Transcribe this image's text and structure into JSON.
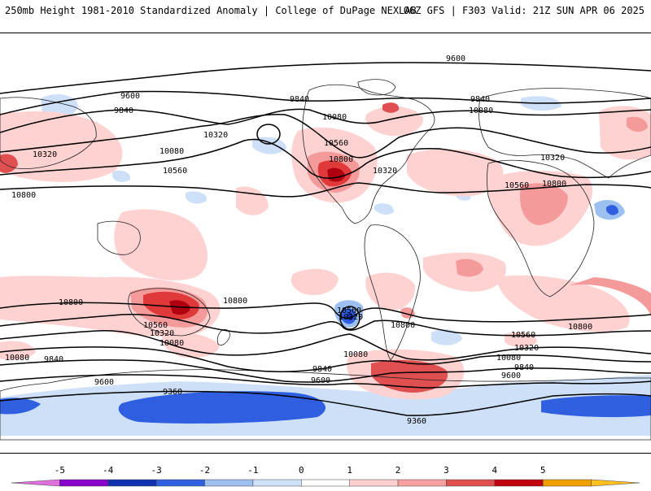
{
  "header": {
    "left_title": "250mb Height 1981-2010 Standardized Anomaly | College of DuPage NEXLAB",
    "right_title": "06Z GFS | F303 Valid: 21Z SUN APR 06 2025"
  },
  "contour_labels": {
    "c9600": "9600",
    "c9840": "9840",
    "c10080": "10080",
    "c10320": "10320",
    "c10560": "10560",
    "c10800": "10800",
    "c9360": "9360"
  },
  "colorbar": {
    "ticks": [
      "-5",
      "-4",
      "-3",
      "-2",
      "-1",
      "0",
      "1",
      "2",
      "3",
      "4",
      "5"
    ],
    "colors": [
      "#e070e0",
      "#8800cc",
      "#1030b0",
      "#3060e0",
      "#9cc0f0",
      "#cfe2fa",
      "#ffffff",
      "#ffd0d0",
      "#f8a0a0",
      "#e05050",
      "#c00010",
      "#f0a000",
      "#ffc020"
    ]
  },
  "style": {
    "positive_light": "#ffd2d2",
    "positive_mid": "#f49a9a",
    "positive_strong": "#e0393a",
    "positive_max": "#b00010",
    "negative_light": "#cde0f8",
    "negative_mid": "#7aa6ee",
    "negative_strong": "#2f5fe0",
    "coast": "#222222",
    "contour": "#000000"
  }
}
